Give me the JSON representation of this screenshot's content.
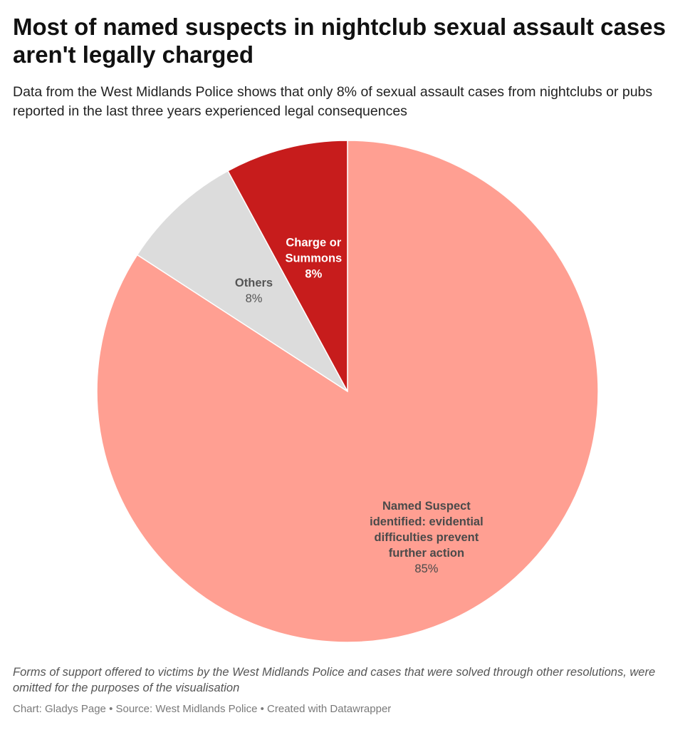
{
  "header": {
    "title": "Most of named suspects in nightclub sexual assault cases aren't legally charged",
    "subtitle": "Data from the West Midlands Police shows that only 8% of sexual assault cases from nightclubs or pubs reported in the last three years experienced legal consequences"
  },
  "chart_data": {
    "type": "pie",
    "start": "12 o'clock",
    "direction": "clockwise",
    "slices": [
      {
        "label": "Named Suspect identified: evidential difficulties prevent further action",
        "label_lines": [
          "Named Suspect",
          "identified: evidential",
          "difficulties prevent",
          "further action"
        ],
        "value": 85,
        "value_label": "85%",
        "color": "#ff9f92",
        "text_color": "#4a4a4a"
      },
      {
        "label": "Others",
        "label_lines": [
          "Others"
        ],
        "value": 8,
        "value_label": "8%",
        "color": "#dcdcdc",
        "text_color": "#555555"
      },
      {
        "label": "Charge or Summons",
        "label_lines": [
          "Charge or",
          "Summons"
        ],
        "value": 8,
        "value_label": "8%",
        "color": "#c71c1c",
        "text_color": "#ffffff"
      }
    ]
  },
  "footer": {
    "notes": "Forms of support offered to victims by the West Midlands Police and cases that were solved through other resolutions, were omitted for the purposes of the visualisation",
    "credits": "Chart: Gladys Page • Source: West Midlands Police • Created with Datawrapper"
  }
}
